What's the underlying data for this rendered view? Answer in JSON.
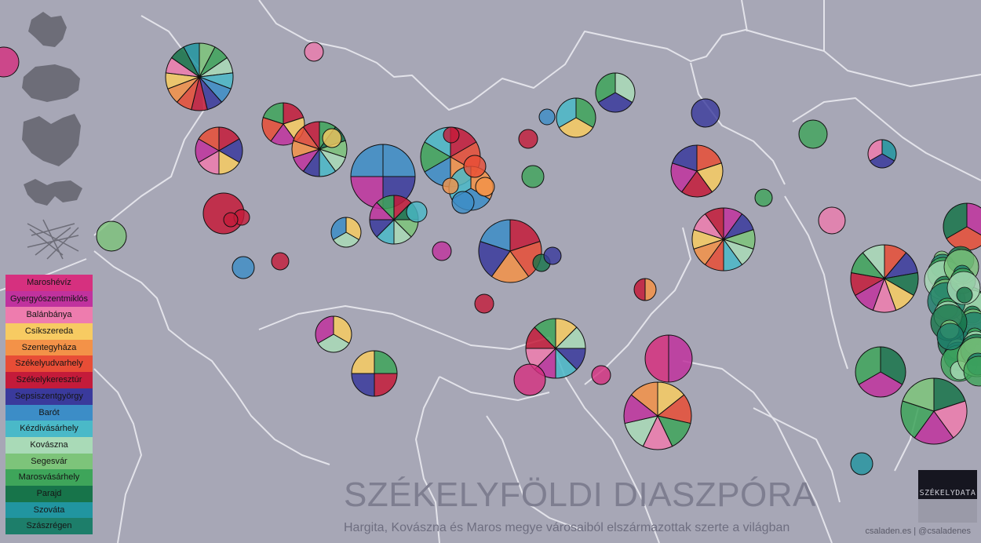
{
  "title": "SZÉKELYFÖLDI DIASZPÓRA",
  "subtitle": "Hargita, Kovászna és Maros megye városaiból elszármazottak szerte a világban",
  "credit": "csaladen.es | @csaladenes",
  "logo_text": "SZÉKELYDATA",
  "colors": {
    "background": "#a7a7b6",
    "border": "#e3e3ea",
    "title": "#7e7e90"
  },
  "legend": [
    {
      "label": "Maroshévíz",
      "color": "#d6307f"
    },
    {
      "label": "Gyergyószentmiklós",
      "color": "#c0329e"
    },
    {
      "label": "Balánbánya",
      "color": "#ee7cae"
    },
    {
      "label": "Csíkszereda",
      "color": "#f7cb62"
    },
    {
      "label": "Szentegyháza",
      "color": "#f39248"
    },
    {
      "label": "Székelyudvarhely",
      "color": "#e84d36"
    },
    {
      "label": "Székelykeresztúr",
      "color": "#c41b3a"
    },
    {
      "label": "Sepsiszentgyörgy",
      "color": "#3a3a9c"
    },
    {
      "label": "Barót",
      "color": "#3c8dc7"
    },
    {
      "label": "Kézdivásárhely",
      "color": "#4ab9c8"
    },
    {
      "label": "Kovászna",
      "color": "#a9dab7"
    },
    {
      "label": "Segesvár",
      "color": "#7dc47a"
    },
    {
      "label": "Marosvásárhely",
      "color": "#3ea55a"
    },
    {
      "label": "Parajd",
      "color": "#17744a"
    },
    {
      "label": "Szováta",
      "color": "#2195a0"
    },
    {
      "label": "Szászrégen",
      "color": "#1d7e6a"
    }
  ],
  "view_thumbnails": [
    "transylvania-view-icon",
    "romania-view-icon",
    "europe-view-icon",
    "world-view-icon",
    "network-view-icon"
  ]
}
